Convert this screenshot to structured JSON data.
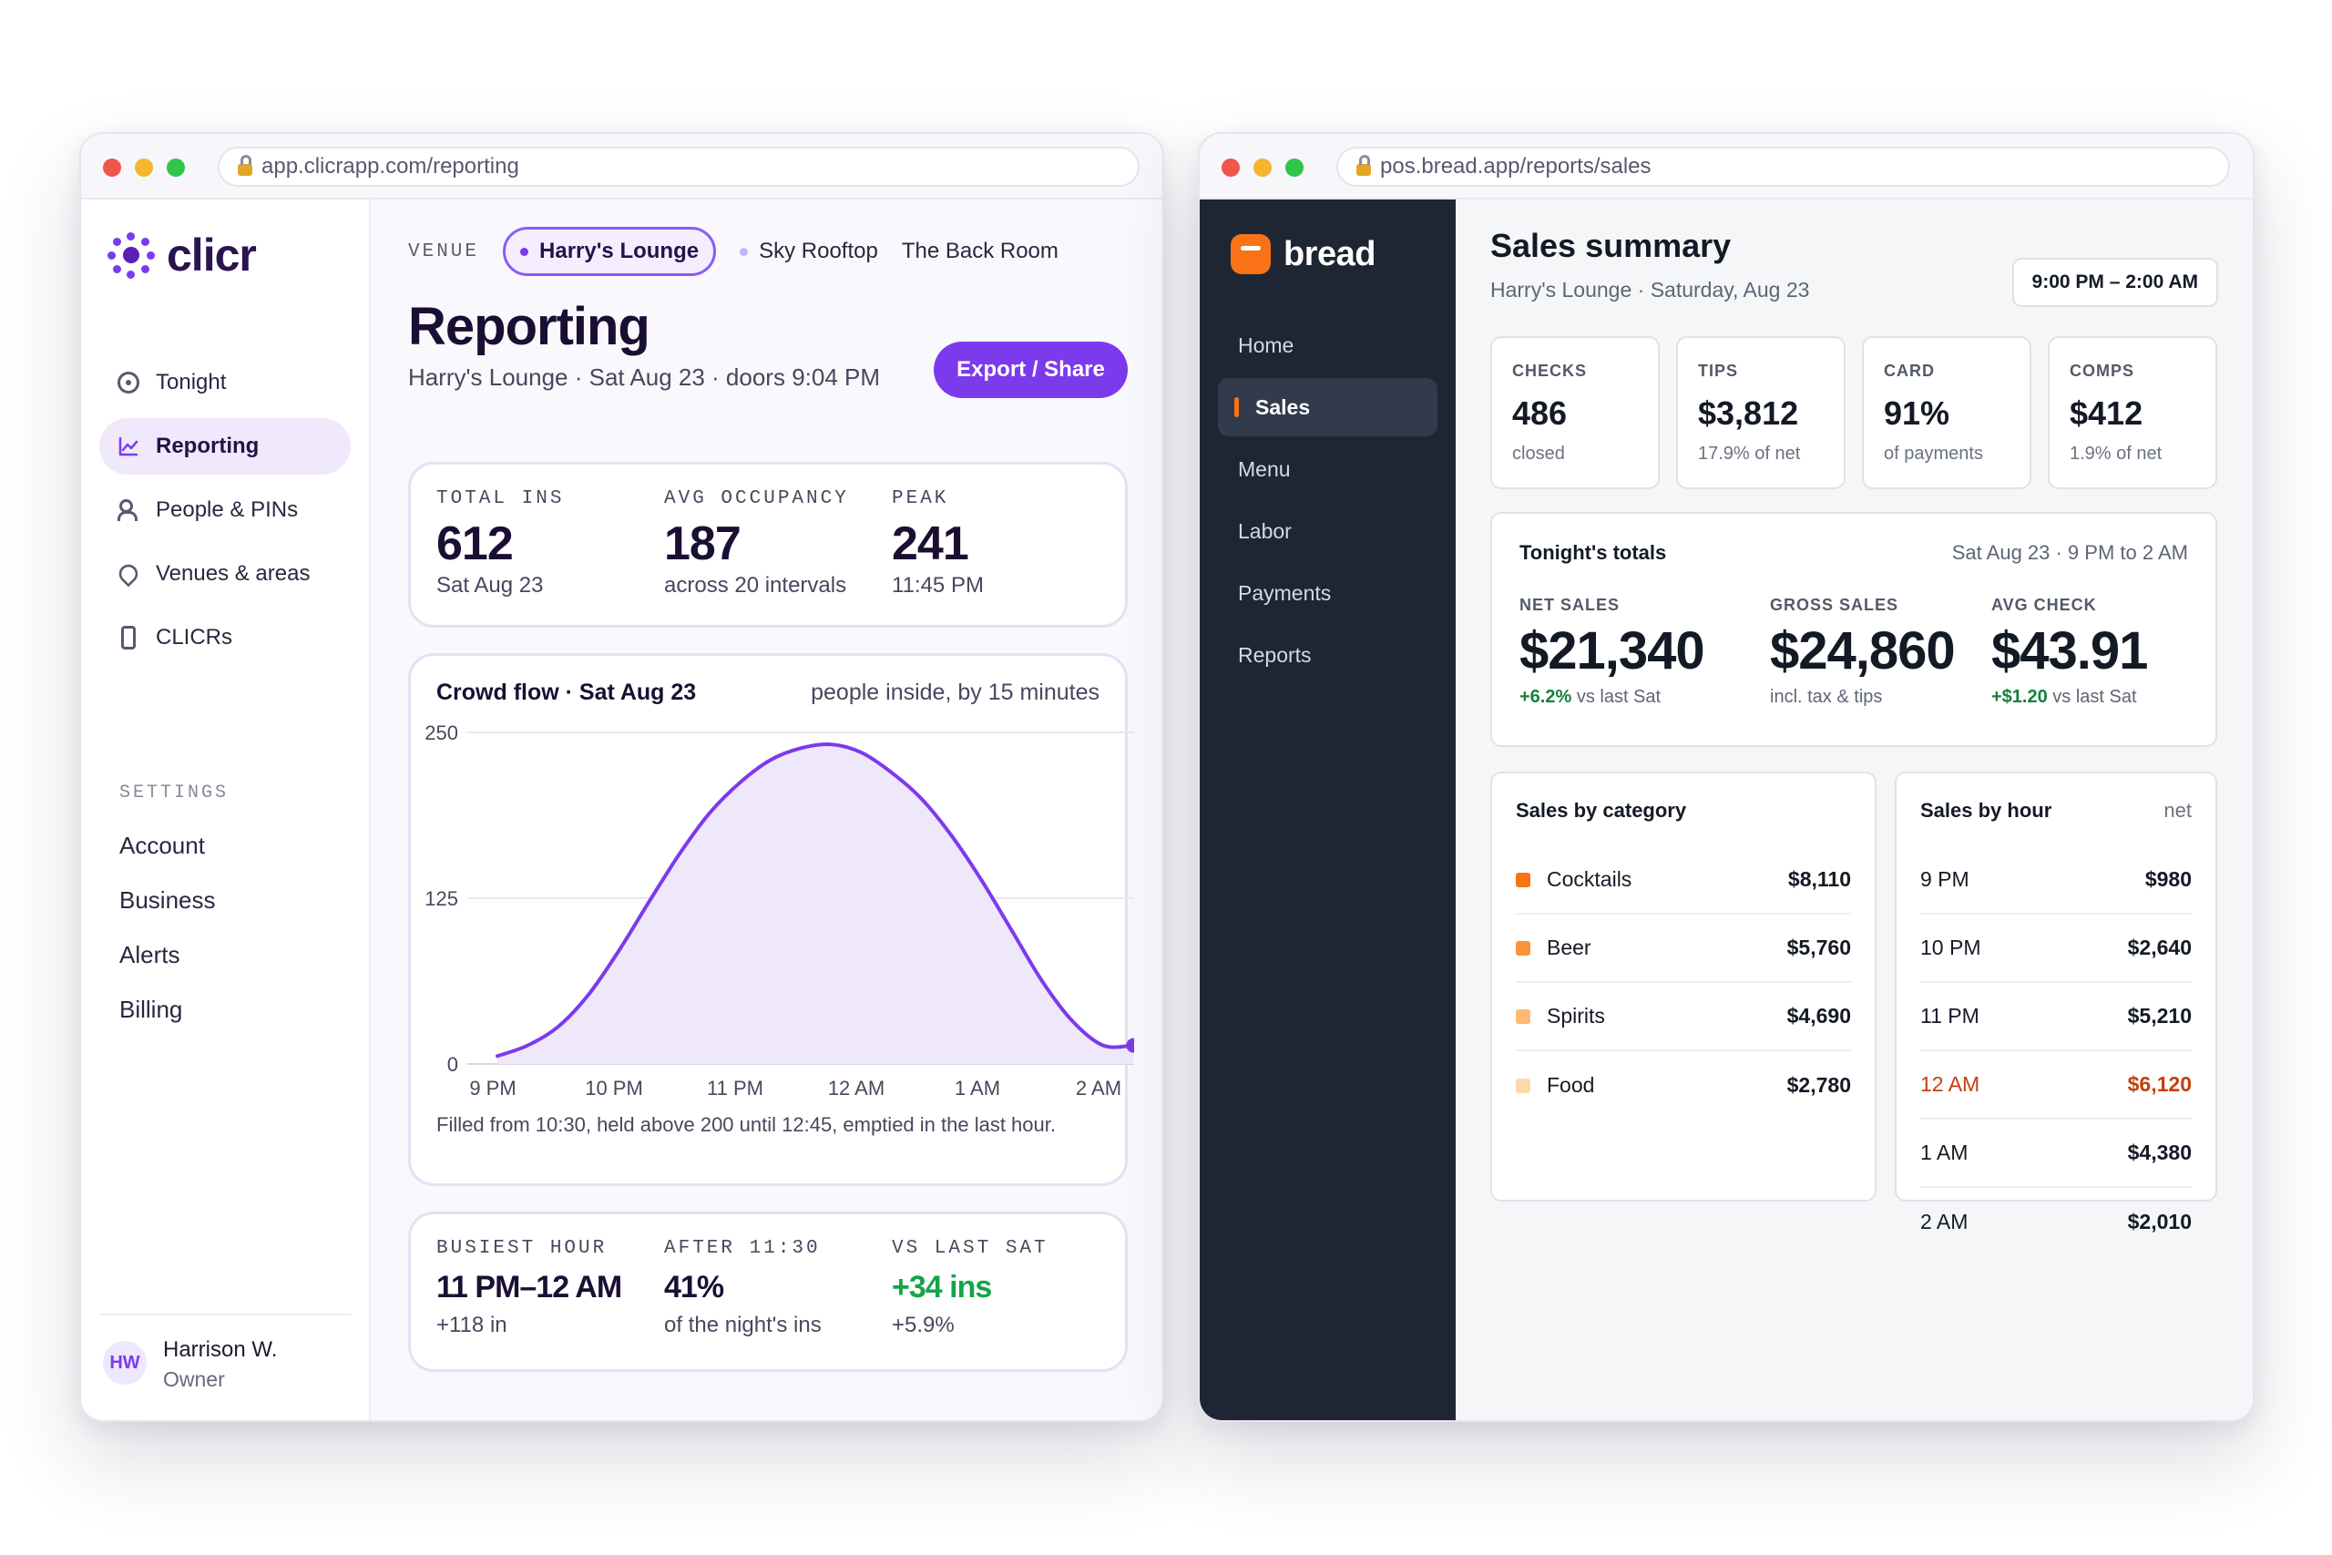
{
  "clicr": {
    "url": "app.clicrapp.com/reporting",
    "logo": "clicr",
    "nav": [
      {
        "label": "Tonight",
        "icon": "target-icon"
      },
      {
        "label": "Reporting",
        "icon": "chart-line-icon",
        "active": true
      },
      {
        "label": "People & PINs",
        "icon": "people-icon"
      },
      {
        "label": "Venues & areas",
        "icon": "location-pin-icon"
      },
      {
        "label": "CLICRs",
        "icon": "device-icon"
      }
    ],
    "settings_label": "SETTINGS",
    "settings": [
      "Account",
      "Business",
      "Alerts",
      "Billing"
    ],
    "user": {
      "initials": "HW",
      "name": "Harrison W.",
      "role": "Owner"
    },
    "venue_label": "VENUE",
    "venues": [
      {
        "label": "Harry's Lounge",
        "active": true
      },
      {
        "label": "Sky Rooftop"
      },
      {
        "label": "The Back Room"
      }
    ],
    "title": "Reporting",
    "subtitle": "Harry's Lounge · Sat Aug 23 · doors 9:04 PM",
    "export_label": "Export / Share",
    "stats": [
      {
        "label": "TOTAL INS",
        "value": "612",
        "sub": "Sat Aug 23"
      },
      {
        "label": "AVG OCCUPANCY",
        "value": "187",
        "sub": "across 20 intervals"
      },
      {
        "label": "PEAK",
        "value": "241",
        "sub": "11:45 PM"
      }
    ],
    "chart_title": "Crowd flow · Sat Aug 23",
    "chart_caption": "people inside, by 15 minutes",
    "chart_note": "Filled from 10:30, held above 200 until 12:45, emptied in the last hour.",
    "bottom_stats": [
      {
        "label": "BUSIEST HOUR",
        "value": "11 PM–12 AM",
        "sub": "+118 in",
        "style": "mid"
      },
      {
        "label": "AFTER 11:30",
        "value": "41%",
        "sub": "of the night's ins",
        "style": "mid"
      },
      {
        "label": "VS LAST SAT",
        "value": "+34 ins",
        "sub": "+5.9%",
        "style": "green"
      }
    ],
    "accent": "#7c3aed"
  },
  "chart_data": {
    "type": "area",
    "title": "Crowd flow · Sat Aug 23",
    "subtitle": "people inside, by 15 minutes",
    "x_ticks": [
      "9 PM",
      "10 PM",
      "11 PM",
      "12 AM",
      "1 AM",
      "2 AM"
    ],
    "y_ticks": [
      0,
      125,
      250
    ],
    "ylim": [
      0,
      250
    ],
    "x": [
      "9:00 PM",
      "9:15 PM",
      "9:30 PM",
      "9:45 PM",
      "10:00 PM",
      "10:15 PM",
      "10:30 PM",
      "10:45 PM",
      "11:00 PM",
      "11:15 PM",
      "11:30 PM",
      "11:45 PM",
      "12:00 AM",
      "12:15 AM",
      "12:30 AM",
      "12:45 AM",
      "1:00 AM",
      "1:15 AM",
      "1:30 AM",
      "1:45 AM",
      "2:00 AM",
      "2:15 AM"
    ],
    "values": [
      6,
      14,
      28,
      52,
      85,
      122,
      158,
      189,
      212,
      229,
      238,
      241,
      235,
      220,
      200,
      172,
      138,
      100,
      62,
      32,
      14,
      14
    ],
    "color": "#7c3aed",
    "fill": "#efe8fb",
    "grid": true
  },
  "bread": {
    "url": "pos.bread.app/reports/sales",
    "logo": "bread",
    "nav": [
      {
        "label": "Home"
      },
      {
        "label": "Sales",
        "active": true
      },
      {
        "label": "Menu"
      },
      {
        "label": "Labor"
      },
      {
        "label": "Payments"
      },
      {
        "label": "Reports"
      }
    ],
    "title": "Sales summary",
    "subtitle": "Harry's Lounge · Saturday, Aug 23",
    "range": "9:00 PM – 2:00 AM",
    "kpis": [
      {
        "label": "CHECKS",
        "value": "486",
        "sub": "closed"
      },
      {
        "label": "TIPS",
        "value": "$3,812",
        "sub": "17.9% of net"
      },
      {
        "label": "CARD",
        "value": "91%",
        "sub": "of payments"
      },
      {
        "label": "COMPS",
        "value": "$412",
        "sub": "1.9% of net"
      }
    ],
    "totals": {
      "title": "Tonight's totals",
      "date": "Sat Aug 23 · 9 PM to 2 AM",
      "net_label": "NET SALES",
      "net_value": "$21,340",
      "net_delta": "+6.2%",
      "net_delta_suffix": " vs last Sat",
      "gross_label": "GROSS SALES",
      "gross_value": "$24,860",
      "gross_sub": "incl. tax & tips",
      "avg_label": "AVG CHECK",
      "avg_value": "$43.91",
      "avg_delta": "+$1.20",
      "avg_delta_suffix": " vs last Sat"
    },
    "category_title": "Sales by category",
    "categories": [
      {
        "label": "Cocktails",
        "value": "$8,110",
        "color": "#f97316"
      },
      {
        "label": "Beer",
        "value": "$5,760",
        "color": "#fb923c"
      },
      {
        "label": "Spirits",
        "value": "$4,690",
        "color": "#fdba74"
      },
      {
        "label": "Food",
        "value": "$2,780",
        "color": "#fed7aa"
      }
    ],
    "hour_title": "Sales by hour",
    "hour_caption": "net",
    "hours": [
      {
        "label": "9 PM",
        "value": "$980"
      },
      {
        "label": "10 PM",
        "value": "$2,640"
      },
      {
        "label": "11 PM",
        "value": "$5,210"
      },
      {
        "label": "12 AM",
        "value": "$6,120",
        "highlight": true
      },
      {
        "label": "1 AM",
        "value": "$4,380"
      },
      {
        "label": "2 AM",
        "value": "$2,010"
      }
    ],
    "accent": "#f97316",
    "highlight_color": "#c2410c"
  }
}
